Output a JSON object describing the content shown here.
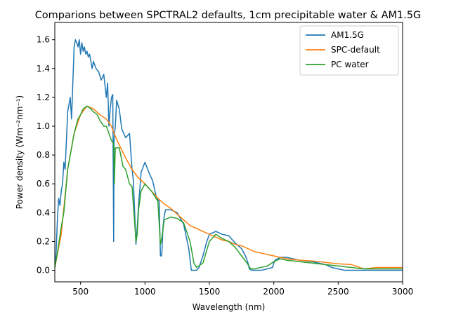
{
  "chart_data": {
    "type": "line",
    "title": "Comparions between SPCTRAL2 defaults, 1cm precipitable water & AM1.5G",
    "xlabel": "Wavelength (nm)",
    "ylabel": "Power density (Wm⁻²nm⁻¹)",
    "xlim": [
      300,
      3000
    ],
    "ylim": [
      -0.08,
      1.72
    ],
    "xticks": [
      500,
      1000,
      1500,
      2000,
      2500,
      3000
    ],
    "yticks": [
      0.0,
      0.2,
      0.4,
      0.6,
      0.8,
      1.0,
      1.2,
      1.4,
      1.6
    ],
    "legend": {
      "position": "top-right"
    },
    "grid": false,
    "series": [
      {
        "name": "AM1.5G",
        "color": "#1f77b4",
        "x": [
          300,
          310,
          320,
          330,
          340,
          350,
          360,
          370,
          380,
          390,
          400,
          410,
          420,
          430,
          440,
          450,
          460,
          470,
          480,
          490,
          500,
          510,
          520,
          530,
          540,
          550,
          560,
          570,
          580,
          590,
          600,
          620,
          640,
          660,
          680,
          700,
          710,
          720,
          730,
          740,
          750,
          757,
          760,
          763,
          770,
          780,
          800,
          820,
          850,
          880,
          900,
          910,
          930,
          940,
          950,
          970,
          1000,
          1030,
          1060,
          1090,
          1110,
          1120,
          1130,
          1140,
          1150,
          1160,
          1200,
          1250,
          1300,
          1340,
          1360,
          1380,
          1400,
          1420,
          1450,
          1480,
          1500,
          1550,
          1600,
          1650,
          1700,
          1750,
          1780,
          1800,
          1810,
          1830,
          1870,
          1900,
          1950,
          1990,
          2000,
          2010,
          2050,
          2100,
          2150,
          2200,
          2300,
          2400,
          2450,
          2500,
          2550,
          2600,
          2700,
          2800,
          2900,
          3000
        ],
        "y": [
          0.02,
          0.12,
          0.35,
          0.5,
          0.45,
          0.55,
          0.6,
          0.75,
          0.7,
          0.9,
          1.1,
          1.15,
          1.2,
          1.05,
          1.3,
          1.55,
          1.6,
          1.58,
          1.55,
          1.6,
          1.5,
          1.58,
          1.52,
          1.55,
          1.5,
          1.52,
          1.48,
          1.5,
          1.45,
          1.4,
          1.45,
          1.4,
          1.38,
          1.32,
          1.36,
          1.2,
          1.3,
          1.0,
          1.12,
          1.2,
          1.22,
          0.2,
          0.9,
          0.95,
          1.0,
          1.18,
          1.12,
          0.98,
          0.92,
          0.95,
          0.7,
          0.62,
          0.18,
          0.3,
          0.45,
          0.68,
          0.75,
          0.68,
          0.62,
          0.5,
          0.48,
          0.1,
          0.1,
          0.3,
          0.38,
          0.42,
          0.42,
          0.4,
          0.32,
          0.15,
          0.0,
          0.0,
          0.0,
          0.02,
          0.1,
          0.2,
          0.25,
          0.27,
          0.25,
          0.24,
          0.19,
          0.15,
          0.1,
          0.05,
          0.01,
          0.0,
          0.0,
          0.0,
          0.01,
          0.02,
          0.05,
          0.07,
          0.09,
          0.09,
          0.08,
          0.07,
          0.06,
          0.04,
          0.02,
          0.01,
          0.0,
          0.0,
          0.0,
          0.0,
          0.0,
          0.0
        ]
      },
      {
        "name": "SPC-default",
        "color": "#ff7f0e",
        "x": [
          300,
          350,
          400,
          450,
          500,
          550,
          600,
          650,
          700,
          740,
          760,
          800,
          850,
          900,
          950,
          1000,
          1050,
          1100,
          1150,
          1200,
          1250,
          1300,
          1350,
          1400,
          1450,
          1500,
          1550,
          1600,
          1650,
          1700,
          1750,
          1800,
          1850,
          1900,
          1950,
          2000,
          2050,
          2100,
          2200,
          2300,
          2400,
          2500,
          2600,
          2700,
          2800,
          2900,
          3000
        ],
        "y": [
          0.02,
          0.25,
          0.7,
          0.95,
          1.08,
          1.14,
          1.12,
          1.08,
          1.05,
          1.0,
          0.95,
          0.87,
          0.78,
          0.7,
          0.64,
          0.6,
          0.55,
          0.5,
          0.46,
          0.43,
          0.39,
          0.35,
          0.31,
          0.29,
          0.27,
          0.25,
          0.23,
          0.21,
          0.2,
          0.18,
          0.17,
          0.15,
          0.13,
          0.12,
          0.11,
          0.1,
          0.09,
          0.08,
          0.07,
          0.065,
          0.055,
          0.045,
          0.04,
          0.01,
          0.02,
          0.02,
          0.02
        ]
      },
      {
        "name": "PC water",
        "color": "#2ca02c",
        "x": [
          300,
          320,
          350,
          370,
          400,
          430,
          450,
          480,
          500,
          520,
          550,
          580,
          600,
          630,
          650,
          680,
          700,
          720,
          740,
          757,
          762,
          770,
          800,
          830,
          850,
          880,
          900,
          930,
          940,
          950,
          970,
          1000,
          1050,
          1100,
          1120,
          1130,
          1150,
          1200,
          1250,
          1300,
          1350,
          1380,
          1400,
          1450,
          1500,
          1550,
          1600,
          1650,
          1700,
          1750,
          1800,
          1820,
          1850,
          1900,
          1950,
          2000,
          2050,
          2100,
          2200,
          2300,
          2400,
          2500,
          2600,
          2700,
          2800,
          2900,
          3000
        ],
        "y": [
          0.02,
          0.12,
          0.3,
          0.4,
          0.7,
          0.85,
          0.95,
          1.05,
          1.08,
          1.12,
          1.14,
          1.12,
          1.1,
          1.08,
          1.04,
          1.0,
          1.0,
          0.95,
          0.9,
          0.88,
          0.6,
          0.85,
          0.85,
          0.72,
          0.7,
          0.6,
          0.58,
          0.2,
          0.25,
          0.42,
          0.55,
          0.6,
          0.55,
          0.48,
          0.18,
          0.22,
          0.35,
          0.37,
          0.36,
          0.33,
          0.2,
          0.05,
          0.02,
          0.05,
          0.2,
          0.25,
          0.22,
          0.2,
          0.16,
          0.1,
          0.04,
          0.01,
          0.01,
          0.02,
          0.03,
          0.06,
          0.08,
          0.07,
          0.06,
          0.05,
          0.04,
          0.03,
          0.02,
          0.01,
          0.01,
          0.01,
          0.01
        ]
      }
    ]
  }
}
